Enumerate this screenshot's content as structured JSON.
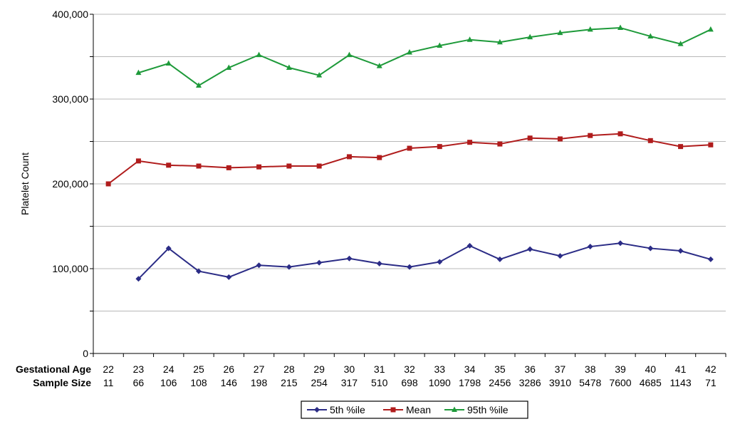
{
  "chart_data": {
    "type": "line",
    "title": "",
    "xlabel": "Gestational Age",
    "ylabel": "Platelet Count",
    "row_labels": {
      "gestational_age": "Gestational Age",
      "sample_size": "Sample Size"
    },
    "categories": [
      "22",
      "23",
      "24",
      "25",
      "26",
      "27",
      "28",
      "29",
      "30",
      "31",
      "32",
      "33",
      "34",
      "35",
      "36",
      "37",
      "38",
      "39",
      "40",
      "41",
      "42"
    ],
    "sample_sizes": [
      "11",
      "66",
      "106",
      "108",
      "146",
      "198",
      "215",
      "254",
      "317",
      "510",
      "698",
      "1090",
      "1798",
      "2456",
      "3286",
      "3910",
      "5478",
      "7600",
      "4685",
      "1143",
      "71"
    ],
    "ylim": [
      0,
      400000
    ],
    "yticks": [
      0,
      100000,
      200000,
      300000,
      400000
    ],
    "ytick_labels": [
      "0",
      "100,000",
      "200,000",
      "300,000",
      "400,000"
    ],
    "grid": true,
    "legend_position": "bottom",
    "series": [
      {
        "name": "5th %ile",
        "color": "#2b2c86",
        "marker": "diamond",
        "values": [
          null,
          88000,
          124000,
          97000,
          90000,
          104000,
          102000,
          107000,
          112000,
          106000,
          102000,
          108000,
          127000,
          111000,
          123000,
          115000,
          126000,
          130000,
          124000,
          121000,
          111000
        ]
      },
      {
        "name": "Mean",
        "color": "#b01c1c",
        "marker": "square",
        "values": [
          200000,
          227000,
          222000,
          221000,
          219000,
          220000,
          221000,
          221000,
          232000,
          231000,
          242000,
          244000,
          249000,
          247000,
          254000,
          253000,
          257000,
          259000,
          251000,
          244000,
          246000
        ]
      },
      {
        "name": "95th %ile",
        "color": "#1e9a3a",
        "marker": "triangle",
        "values": [
          null,
          331000,
          342000,
          316000,
          337000,
          352000,
          337000,
          328000,
          352000,
          339000,
          355000,
          363000,
          370000,
          367000,
          373000,
          378000,
          382000,
          384000,
          374000,
          365000,
          382000
        ]
      }
    ]
  }
}
